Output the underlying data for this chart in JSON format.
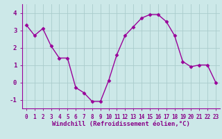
{
  "x": [
    0,
    1,
    2,
    3,
    4,
    5,
    6,
    7,
    8,
    9,
    10,
    11,
    12,
    13,
    14,
    15,
    16,
    17,
    18,
    19,
    20,
    21,
    22,
    23
  ],
  "y": [
    3.3,
    2.7,
    3.1,
    2.1,
    1.4,
    1.4,
    -0.3,
    -0.6,
    -1.1,
    -1.1,
    0.1,
    1.6,
    2.7,
    3.2,
    3.7,
    3.9,
    3.9,
    3.5,
    2.7,
    1.2,
    0.9,
    1.0,
    1.0,
    0.0
  ],
  "line_color": "#990099",
  "marker": "D",
  "markersize": 2.5,
  "linewidth": 1.0,
  "bg_color": "#cce8e8",
  "grid_color": "#aacccc",
  "xlabel": "Windchill (Refroidissement éolien,°C)",
  "xlabel_color": "#880088",
  "tick_color": "#880088",
  "yticks": [
    -1,
    0,
    1,
    2,
    3,
    4
  ],
  "xticks": [
    0,
    1,
    2,
    3,
    4,
    5,
    6,
    7,
    8,
    9,
    10,
    11,
    12,
    13,
    14,
    15,
    16,
    17,
    18,
    19,
    20,
    21,
    22,
    23
  ],
  "ylim": [
    -1.5,
    4.5
  ],
  "xlim": [
    -0.5,
    23.5
  ],
  "tick_fontsize": 5.5,
  "ytick_fontsize": 6.5,
  "xlabel_fontsize": 6.5
}
